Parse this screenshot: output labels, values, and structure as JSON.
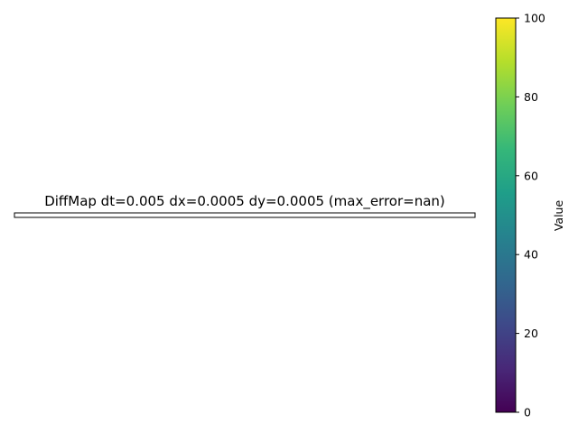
{
  "chart_data": {
    "type": "heatmap",
    "title": "DiffMap dt=0.005 dx=0.0005 dy=0.0005 (max_error=nan)",
    "xlabel": "",
    "ylabel": "",
    "axes_visible": false,
    "grid": false,
    "cells": "nan",
    "colorbar": {
      "label": "Value",
      "colormap": "viridis",
      "range": [
        0,
        100
      ],
      "ticks": [
        "0",
        "20",
        "40",
        "60",
        "80",
        "100"
      ],
      "tick_values": [
        0,
        20,
        40,
        60,
        80,
        100
      ],
      "colors": [
        "#440154",
        "#482878",
        "#3e4989",
        "#31688e",
        "#26828e",
        "#1f9e89",
        "#35b779",
        "#6ece58",
        "#b5de2b",
        "#fde725"
      ]
    }
  }
}
